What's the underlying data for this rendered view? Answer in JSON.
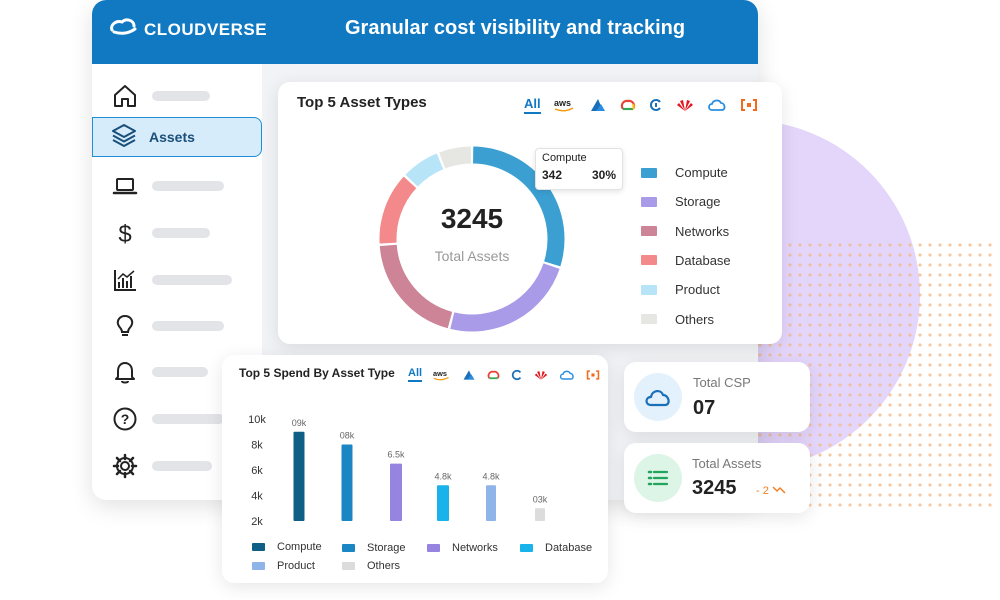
{
  "header": {
    "logo_text": "CLOUDVERSE",
    "title": "Granular cost visibility and tracking"
  },
  "sidebar": {
    "items": [
      {
        "icon": "home-icon",
        "label": ""
      },
      {
        "icon": "layers-icon",
        "label": "Assets",
        "active": true
      },
      {
        "icon": "laptop-icon",
        "label": ""
      },
      {
        "icon": "dollar-icon",
        "label": ""
      },
      {
        "icon": "chart-icon",
        "label": ""
      },
      {
        "icon": "lightbulb-icon",
        "label": ""
      },
      {
        "icon": "bell-icon",
        "label": ""
      },
      {
        "icon": "help-icon",
        "label": ""
      },
      {
        "icon": "gear-icon",
        "label": ""
      }
    ]
  },
  "providers": [
    "All",
    "aws",
    "azure",
    "gcp",
    "alibaba",
    "huawei",
    "ibm",
    "oracle"
  ],
  "donut_card": {
    "title": "Top 5 Asset Types",
    "center_value": "3245",
    "center_label": "Total Assets",
    "tooltip": {
      "name": "Compute",
      "count": "342",
      "percent": "30%"
    }
  },
  "bar_card": {
    "title": "Top 5 Spend By Asset Type"
  },
  "stats": {
    "total_csp": {
      "label": "Total CSP",
      "value": "07"
    },
    "total_assets": {
      "label": "Total Assets",
      "value": "3245",
      "delta": "- 2"
    }
  },
  "colors": {
    "compute": "#3b9fd2",
    "storage": "#a99be8",
    "networks": "#cd8497",
    "database": "#f4898c",
    "product": "#b7e4f7",
    "others": "#e6e6e2",
    "bar_compute": "#0f5e85",
    "bar_storage": "#1a86c4",
    "bar_networks": "#9585e0",
    "bar_database": "#19b3ec",
    "bar_product": "#8fb4ea",
    "bar_others": "#dcdcdc"
  },
  "chart_data": [
    {
      "type": "pie",
      "title": "Top 5 Asset Types",
      "categories": [
        "Compute",
        "Storage",
        "Networks",
        "Database",
        "Product",
        "Others"
      ],
      "values": [
        30,
        24,
        20,
        13,
        7,
        6
      ],
      "colors": [
        "#3b9fd2",
        "#a99be8",
        "#cd8497",
        "#f4898c",
        "#b7e4f7",
        "#e6e6e2"
      ]
    },
    {
      "type": "bar",
      "title": "Top 5 Spend By Asset Type",
      "categories": [
        "Compute",
        "Storage",
        "Networks",
        "Database",
        "Product",
        "Others"
      ],
      "values": [
        9000,
        8000,
        6500,
        4800,
        4800,
        3000
      ],
      "data_labels": [
        "09k",
        "08k",
        "6.5k",
        "4.8k",
        "4.8k",
        "03k"
      ],
      "yticks": [
        "2k",
        "4k",
        "6k",
        "8k",
        "10k"
      ],
      "ylim": [
        2000,
        10000
      ],
      "colors": [
        "#0f5e85",
        "#1a86c4",
        "#9585e0",
        "#19b3ec",
        "#8fb4ea",
        "#dcdcdc"
      ]
    }
  ]
}
